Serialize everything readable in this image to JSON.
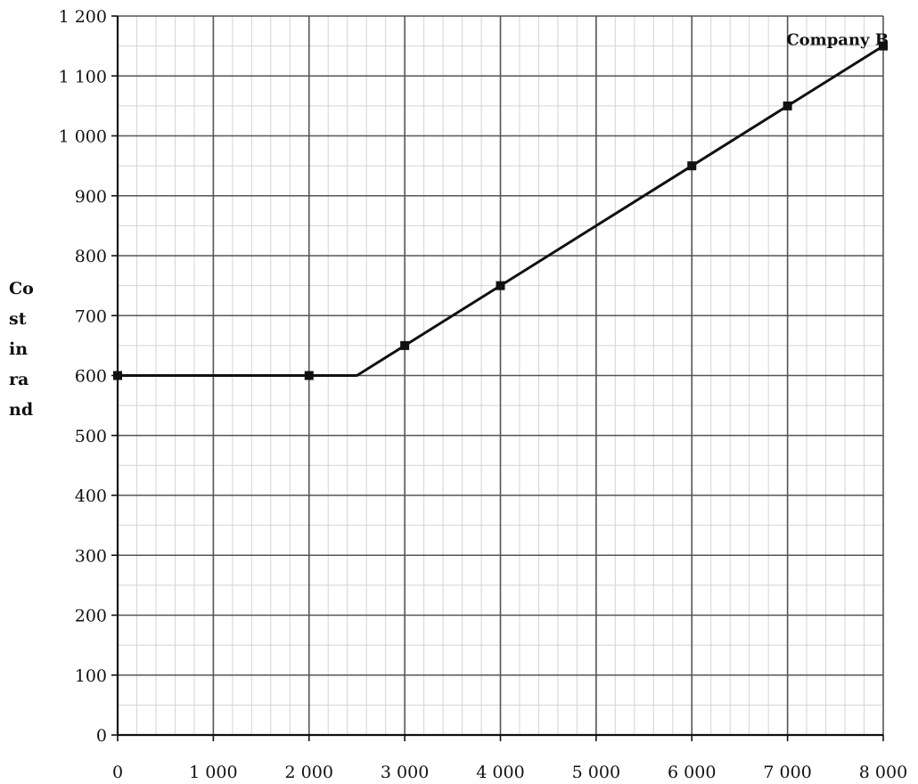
{
  "chart_data": {
    "type": "line",
    "title": "",
    "xlabel": "",
    "ylabel_lines": [
      "Co",
      "st",
      "in",
      "ra",
      "nd"
    ],
    "xlim": [
      0,
      8000
    ],
    "ylim": [
      0,
      1200
    ],
    "x_major_step": 1000,
    "y_major_step": 100,
    "x_ticks": [
      "0",
      "1 000",
      "2 000",
      "3 000",
      "4 000",
      "5 000",
      "6 000",
      "7 000",
      "8 000"
    ],
    "y_ticks": [
      "0",
      "100",
      "200",
      "300",
      "400",
      "500",
      "600",
      "700",
      "800",
      "900",
      "1 000",
      "1 100",
      "1 200"
    ],
    "grid": true,
    "series": [
      {
        "name": "Company B",
        "line": [
          {
            "x": 0,
            "y": 600
          },
          {
            "x": 2500,
            "y": 600
          },
          {
            "x": 8000,
            "y": 1150
          }
        ],
        "markers": [
          {
            "x": 0,
            "y": 600
          },
          {
            "x": 2000,
            "y": 600
          },
          {
            "x": 3000,
            "y": 650
          },
          {
            "x": 4000,
            "y": 750
          },
          {
            "x": 6000,
            "y": 950
          },
          {
            "x": 7000,
            "y": 1050
          },
          {
            "x": 8000,
            "y": 1150
          }
        ]
      }
    ]
  }
}
